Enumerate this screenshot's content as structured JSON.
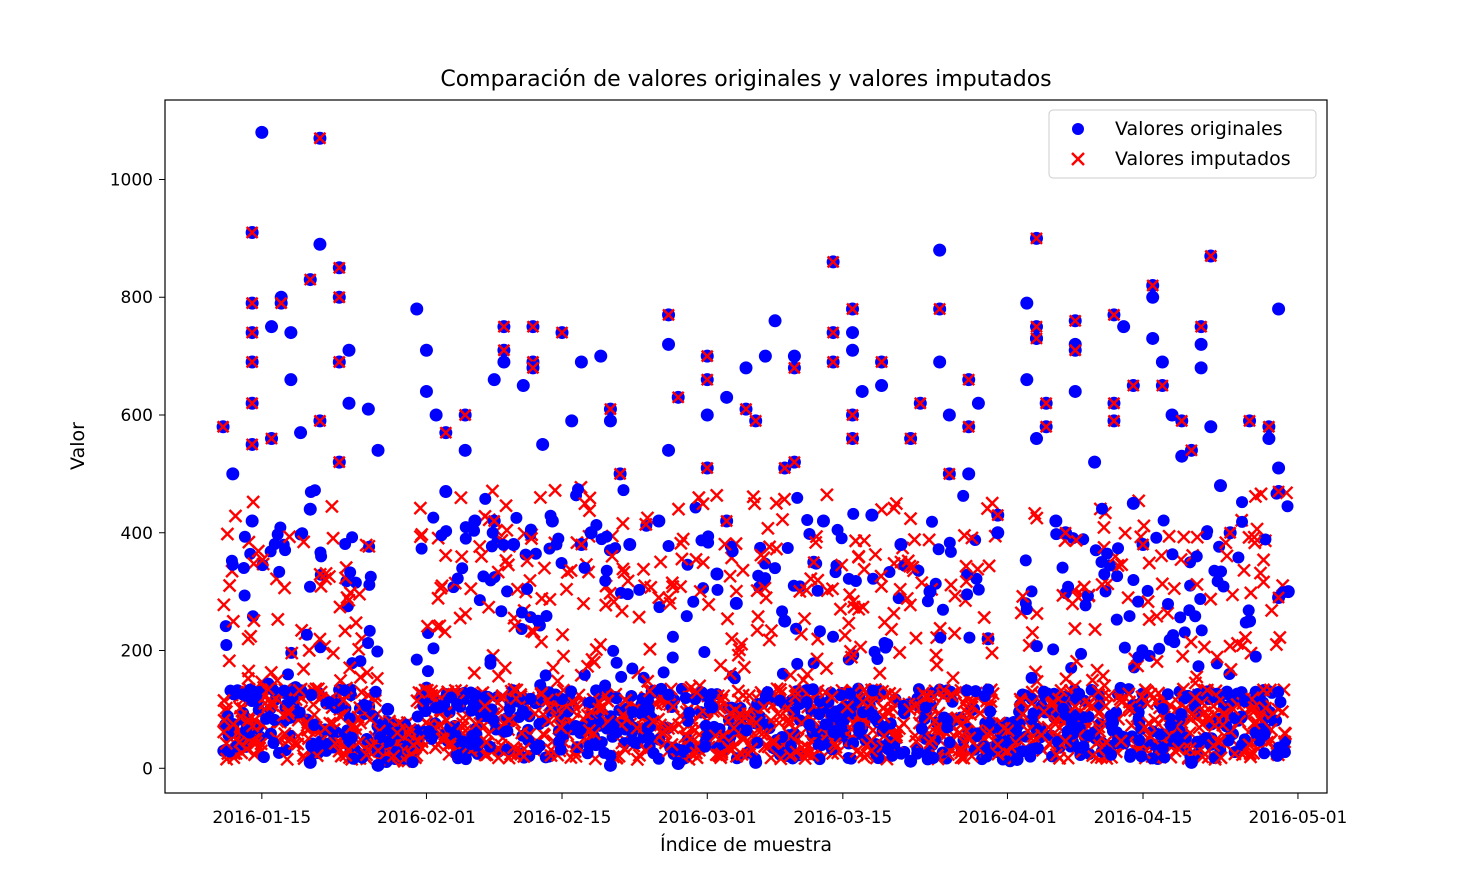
{
  "chart_data": {
    "type": "scatter",
    "title": "Comparación de valores originales y valores imputados",
    "xlabel": "Índice de muestra",
    "ylabel": "Valor",
    "x_type": "date",
    "xlim": [
      "2016-01-05",
      "2016-05-04"
    ],
    "ylim": [
      -42,
      1135
    ],
    "x_ticks": [
      "2016-01-15",
      "2016-02-01",
      "2016-02-15",
      "2016-03-01",
      "2016-03-15",
      "2016-04-01",
      "2016-04-15",
      "2016-05-01"
    ],
    "y_ticks": [
      0,
      200,
      400,
      600,
      800,
      1000
    ],
    "grid": false,
    "legend": {
      "position": "top-right",
      "entries": [
        "Valores originales",
        "Valores imputados"
      ]
    },
    "series": [
      {
        "name": "Valores originales",
        "marker": "circle",
        "color": "#0000ff",
        "points": [
          [
            "2016-01-15",
            1080
          ],
          [
            "2016-01-17",
            800
          ],
          [
            "2016-01-16",
            750
          ],
          [
            "2016-01-18",
            740
          ],
          [
            "2016-01-21",
            890
          ],
          [
            "2016-01-18",
            660
          ],
          [
            "2016-01-19",
            570
          ],
          [
            "2016-01-24",
            710
          ],
          [
            "2016-01-24",
            620
          ],
          [
            "2016-01-26",
            610
          ],
          [
            "2016-01-27",
            540
          ],
          [
            "2016-01-31",
            780
          ],
          [
            "2016-02-01",
            710
          ],
          [
            "2016-02-01",
            640
          ],
          [
            "2016-02-02",
            600
          ],
          [
            "2016-02-05",
            540
          ],
          [
            "2016-02-08",
            660
          ],
          [
            "2016-02-09",
            690
          ],
          [
            "2016-02-11",
            650
          ],
          [
            "2016-02-13",
            550
          ],
          [
            "2016-02-16",
            590
          ],
          [
            "2016-02-17",
            690
          ],
          [
            "2016-02-19",
            700
          ],
          [
            "2016-02-20",
            590
          ],
          [
            "2016-02-26",
            720
          ],
          [
            "2016-02-26",
            540
          ],
          [
            "2016-03-01",
            600
          ],
          [
            "2016-03-03",
            630
          ],
          [
            "2016-03-05",
            680
          ],
          [
            "2016-03-07",
            700
          ],
          [
            "2016-03-08",
            760
          ],
          [
            "2016-03-10",
            700
          ],
          [
            "2016-03-16",
            740
          ],
          [
            "2016-03-16",
            710
          ],
          [
            "2016-03-17",
            640
          ],
          [
            "2016-03-19",
            650
          ],
          [
            "2016-03-25",
            880
          ],
          [
            "2016-03-25",
            690
          ],
          [
            "2016-03-26",
            600
          ],
          [
            "2016-03-29",
            620
          ],
          [
            "2016-03-28",
            500
          ],
          [
            "2016-04-03",
            790
          ],
          [
            "2016-04-04",
            730
          ],
          [
            "2016-04-03",
            660
          ],
          [
            "2016-04-04",
            560
          ],
          [
            "2016-04-08",
            640
          ],
          [
            "2016-04-08",
            720
          ],
          [
            "2016-04-13",
            750
          ],
          [
            "2016-04-16",
            800
          ],
          [
            "2016-04-16",
            730
          ],
          [
            "2016-04-17",
            690
          ],
          [
            "2016-04-18",
            600
          ],
          [
            "2016-04-21",
            720
          ],
          [
            "2016-04-21",
            680
          ],
          [
            "2016-04-22",
            580
          ],
          [
            "2016-04-29",
            780
          ],
          [
            "2016-04-28",
            560
          ],
          [
            "2016-04-29",
            510
          ],
          [
            "2016-04-30",
            300
          ],
          [
            "2016-01-12",
            500
          ],
          [
            "2016-01-14",
            420
          ],
          [
            "2016-01-20",
            440
          ],
          [
            "2016-01-28",
            100
          ],
          [
            "2016-02-03",
            470
          ],
          [
            "2016-02-06",
            420
          ],
          [
            "2016-02-10",
            380
          ],
          [
            "2016-02-14",
            420
          ],
          [
            "2016-02-18",
            400
          ],
          [
            "2016-02-22",
            380
          ],
          [
            "2016-02-25",
            420
          ],
          [
            "2016-03-02",
            330
          ],
          [
            "2016-03-04",
            280
          ],
          [
            "2016-03-09",
            250
          ],
          [
            "2016-03-13",
            420
          ],
          [
            "2016-03-18",
            430
          ],
          [
            "2016-03-21",
            380
          ],
          [
            "2016-03-24",
            300
          ],
          [
            "2016-03-31",
            400
          ],
          [
            "2016-04-06",
            420
          ],
          [
            "2016-04-10",
            520
          ],
          [
            "2016-04-14",
            450
          ],
          [
            "2016-04-19",
            530
          ],
          [
            "2016-04-23",
            480
          ],
          [
            "2016-04-26",
            250
          ],
          [
            "2016-01-20",
            10
          ],
          [
            "2016-01-27",
            5
          ],
          [
            "2016-02-20",
            5
          ],
          [
            "2016-02-27",
            8
          ],
          [
            "2016-03-06",
            10
          ],
          [
            "2016-03-22",
            12
          ],
          [
            "2016-04-02",
            15
          ],
          [
            "2016-04-20",
            10
          ]
        ]
      },
      {
        "name": "Valores imputados",
        "marker": "x",
        "color": "#ff0000",
        "points": [
          [
            "2016-01-21",
            1070
          ],
          [
            "2016-01-14",
            910
          ],
          [
            "2016-01-20",
            830
          ],
          [
            "2016-01-23",
            850
          ],
          [
            "2016-01-23",
            800
          ],
          [
            "2016-01-14",
            790
          ],
          [
            "2016-01-17",
            790
          ],
          [
            "2016-01-14",
            740
          ],
          [
            "2016-01-14",
            690
          ],
          [
            "2016-01-23",
            690
          ],
          [
            "2016-01-14",
            620
          ],
          [
            "2016-01-21",
            590
          ],
          [
            "2016-01-11",
            580
          ],
          [
            "2016-01-14",
            550
          ],
          [
            "2016-01-16",
            560
          ],
          [
            "2016-01-23",
            520
          ],
          [
            "2016-02-03",
            570
          ],
          [
            "2016-02-05",
            600
          ],
          [
            "2016-02-09",
            750
          ],
          [
            "2016-02-12",
            750
          ],
          [
            "2016-02-09",
            710
          ],
          [
            "2016-02-12",
            690
          ],
          [
            "2016-02-12",
            680
          ],
          [
            "2016-02-15",
            740
          ],
          [
            "2016-02-20",
            610
          ],
          [
            "2016-02-21",
            500
          ],
          [
            "2016-02-26",
            770
          ],
          [
            "2016-02-27",
            630
          ],
          [
            "2016-03-01",
            700
          ],
          [
            "2016-03-01",
            660
          ],
          [
            "2016-03-01",
            510
          ],
          [
            "2016-03-05",
            610
          ],
          [
            "2016-03-06",
            590
          ],
          [
            "2016-03-09",
            510
          ],
          [
            "2016-03-10",
            520
          ],
          [
            "2016-03-10",
            680
          ],
          [
            "2016-03-14",
            860
          ],
          [
            "2016-03-14",
            740
          ],
          [
            "2016-03-14",
            690
          ],
          [
            "2016-03-16",
            780
          ],
          [
            "2016-03-16",
            600
          ],
          [
            "2016-03-16",
            560
          ],
          [
            "2016-03-19",
            690
          ],
          [
            "2016-03-22",
            560
          ],
          [
            "2016-03-23",
            620
          ],
          [
            "2016-03-25",
            780
          ],
          [
            "2016-03-26",
            500
          ],
          [
            "2016-03-28",
            660
          ],
          [
            "2016-03-28",
            580
          ],
          [
            "2016-04-04",
            900
          ],
          [
            "2016-04-04",
            750
          ],
          [
            "2016-04-04",
            730
          ],
          [
            "2016-04-05",
            620
          ],
          [
            "2016-04-05",
            580
          ],
          [
            "2016-04-08",
            760
          ],
          [
            "2016-04-08",
            710
          ],
          [
            "2016-04-12",
            770
          ],
          [
            "2016-04-12",
            620
          ],
          [
            "2016-04-12",
            590
          ],
          [
            "2016-04-14",
            650
          ],
          [
            "2016-04-16",
            820
          ],
          [
            "2016-04-17",
            650
          ],
          [
            "2016-04-19",
            590
          ],
          [
            "2016-04-20",
            540
          ],
          [
            "2016-04-22",
            870
          ],
          [
            "2016-04-21",
            750
          ],
          [
            "2016-04-26",
            590
          ],
          [
            "2016-04-28",
            580
          ],
          [
            "2016-04-29",
            470
          ],
          [
            "2016-04-29",
            290
          ],
          [
            "2016-03-31",
            430
          ],
          [
            "2016-03-30",
            220
          ],
          [
            "2016-01-29",
            60
          ],
          [
            "2016-01-27",
            30
          ],
          [
            "2016-03-31",
            40
          ],
          [
            "2016-02-08",
            420
          ],
          [
            "2016-02-17",
            380
          ],
          [
            "2016-03-03",
            420
          ],
          [
            "2016-03-12",
            350
          ],
          [
            "2016-04-07",
            400
          ],
          [
            "2016-04-15",
            380
          ],
          [
            "2016-04-24",
            400
          ]
        ]
      }
    ]
  }
}
